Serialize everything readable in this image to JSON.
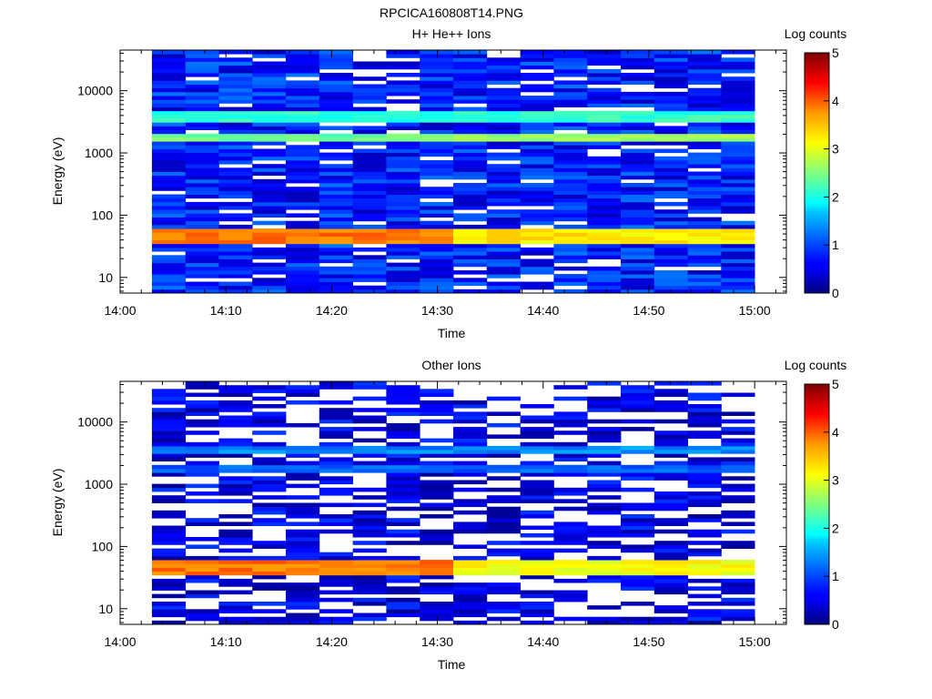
{
  "figure_title": "RPCICA160808T14.PNG",
  "chart_data": [
    {
      "type": "heatmap",
      "title": "H+ He++ Ions",
      "xlabel": "Time",
      "ylabel": "Energy (eV)",
      "y_scale": "log",
      "x_ticks": [
        "14:00",
        "14:10",
        "14:20",
        "14:30",
        "14:40",
        "14:50",
        "15:00"
      ],
      "y_ticks": [
        "10",
        "100",
        "1000",
        "10000"
      ],
      "xlim": [
        "14:00",
        "15:03"
      ],
      "ylim": [
        5.6,
        45000
      ],
      "data_start": "14:03",
      "data_end": "15:00",
      "colorbar": {
        "label": "Log counts",
        "range": [
          0,
          5
        ],
        "ticks": [
          "0",
          "1",
          "2",
          "3",
          "4",
          "5"
        ]
      },
      "bands": [
        {
          "energy": [
            35,
            60
          ],
          "log_counts": [
            4.0,
            3.4
          ]
        },
        {
          "energy": [
            1500,
            2100
          ],
          "log_counts": [
            2.6,
            2.9
          ]
        },
        {
          "energy": [
            3000,
            4500
          ],
          "log_counts": [
            2.3,
            2.3
          ]
        }
      ]
    },
    {
      "type": "heatmap",
      "title": "Other Ions",
      "xlabel": "Time",
      "ylabel": "Energy (eV)",
      "y_scale": "log",
      "x_ticks": [
        "14:00",
        "14:10",
        "14:20",
        "14:30",
        "14:40",
        "14:50",
        "15:00"
      ],
      "y_ticks": [
        "10",
        "100",
        "1000",
        "10000"
      ],
      "xlim": [
        "14:00",
        "15:03"
      ],
      "ylim": [
        5.6,
        45000
      ],
      "data_start": "14:03",
      "data_end": "15:00",
      "colorbar": {
        "label": "Log counts",
        "range": [
          0,
          5
        ],
        "ticks": [
          "0",
          "1",
          "2",
          "3",
          "4",
          "5"
        ]
      },
      "bands": [
        {
          "energy": [
            35,
            60
          ],
          "log_counts": [
            4.0,
            3.3
          ]
        },
        {
          "energy": [
            1500,
            2000
          ],
          "log_counts": [
            1.3,
            1.3
          ]
        },
        {
          "energy": [
            3000,
            4200
          ],
          "log_counts": [
            1.5,
            1.5
          ]
        }
      ]
    }
  ]
}
